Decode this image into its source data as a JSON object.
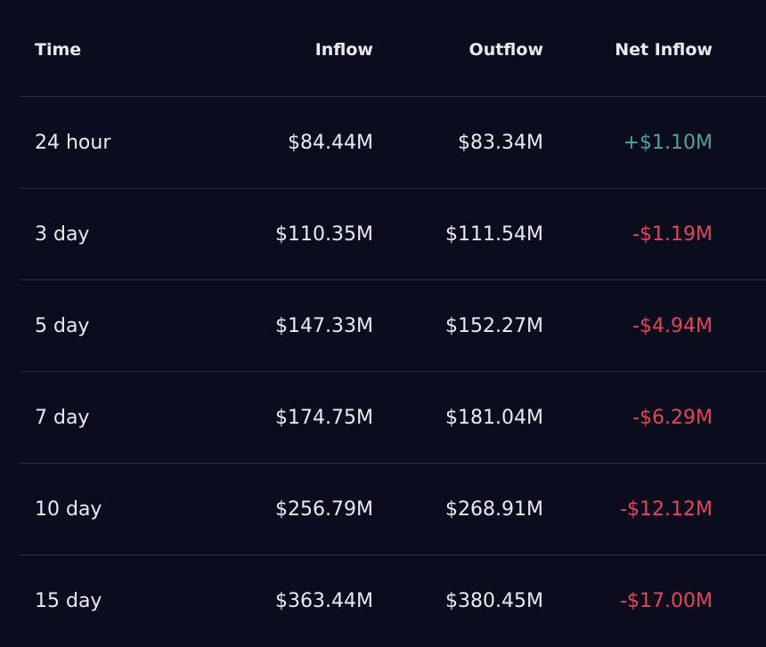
{
  "table": {
    "headers": {
      "time": "Time",
      "inflow": "Inflow",
      "outflow": "Outflow",
      "net_inflow": "Net Inflow"
    },
    "rows": [
      {
        "time": "24 hour",
        "inflow": "$84.44M",
        "outflow": "$83.34M",
        "net": "+$1.10M",
        "net_sign": "positive"
      },
      {
        "time": "3 day",
        "inflow": "$110.35M",
        "outflow": "$111.54M",
        "net": "-$1.19M",
        "net_sign": "negative"
      },
      {
        "time": "5 day",
        "inflow": "$147.33M",
        "outflow": "$152.27M",
        "net": "-$4.94M",
        "net_sign": "negative"
      },
      {
        "time": "7 day",
        "inflow": "$174.75M",
        "outflow": "$181.04M",
        "net": "-$6.29M",
        "net_sign": "negative"
      },
      {
        "time": "10 day",
        "inflow": "$256.79M",
        "outflow": "$268.91M",
        "net": "-$12.12M",
        "net_sign": "negative"
      },
      {
        "time": "15 day",
        "inflow": "$363.44M",
        "outflow": "$380.45M",
        "net": "-$17.00M",
        "net_sign": "negative"
      }
    ]
  },
  "colors": {
    "background": "#0b0d1f",
    "text": "#e8eaf0",
    "positive": "#4fa393",
    "negative": "#e0475a",
    "divider": "#2a2e40"
  }
}
